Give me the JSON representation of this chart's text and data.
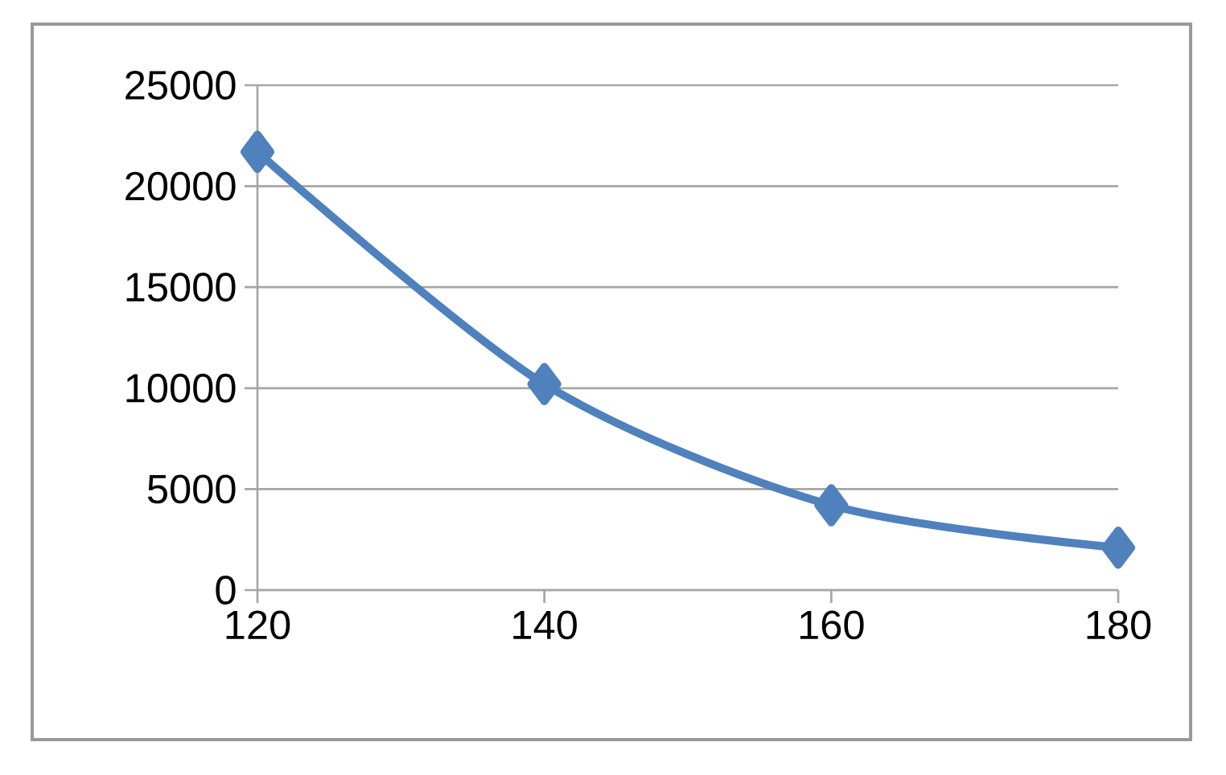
{
  "chart_data": {
    "type": "line",
    "x": [
      120,
      140,
      160,
      180
    ],
    "values": [
      21700,
      10200,
      4200,
      2100
    ],
    "color": "#4f81bd",
    "xlim": [
      120,
      180
    ],
    "xticks": [
      120,
      140,
      160,
      180
    ],
    "ylim": [
      0,
      25000
    ],
    "yticks": [
      0,
      5000,
      10000,
      15000,
      20000,
      25000
    ],
    "grid": "y",
    "marker": "diamond",
    "line_style": "solid"
  }
}
